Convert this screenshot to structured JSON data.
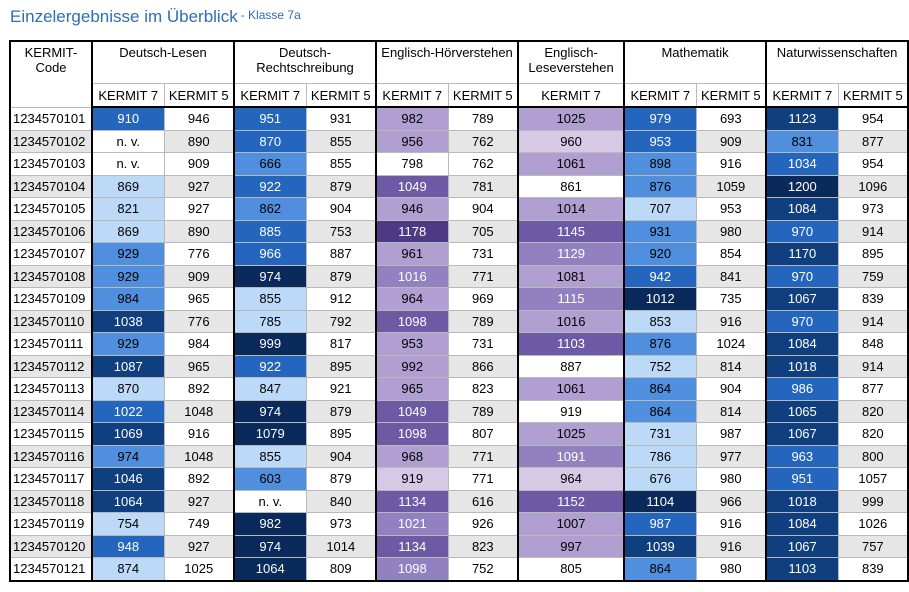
{
  "title": "Einzelergebnisse im Überblick",
  "subtitle": "- Klasse 7a",
  "code_header": "KERMIT-Code",
  "subject_groups": [
    {
      "name": "Deutsch-Lesen",
      "subcols": [
        "KERMIT 7",
        "KERMIT 5"
      ]
    },
    {
      "name": "Deutsch-Rechtschreibung",
      "subcols": [
        "KERMIT 7",
        "KERMIT 5"
      ]
    },
    {
      "name": "Englisch-Hörverstehen",
      "subcols": [
        "KERMIT 7",
        "KERMIT 5"
      ]
    },
    {
      "name": "Englisch-Leseverstehen",
      "subcols": [
        "KERMIT 7"
      ]
    },
    {
      "name": "Mathematik",
      "subcols": [
        "KERMIT 7",
        "KERMIT 5"
      ]
    },
    {
      "name": "Naturwissenschaften",
      "subcols": [
        "KERMIT 7",
        "KERMIT 5"
      ]
    }
  ],
  "palette": {
    "blue": [
      "#ffffff",
      "#bcd9f7",
      "#4f8fde",
      "#2466bd",
      "#103f80",
      "#0a2a5c"
    ],
    "purple": [
      "#ffffff",
      "#d5c9e5",
      "#b09fd0",
      "#9281c1",
      "#6d5aa5",
      "#4d3a84"
    ]
  },
  "rows": [
    {
      "code": "1234570101",
      "cells": [
        [
          "910",
          3
        ],
        [
          "946",
          0
        ],
        [
          "951",
          3
        ],
        [
          "931",
          0
        ],
        [
          "982",
          2
        ],
        [
          "789",
          0
        ],
        [
          "1025",
          2
        ],
        [
          "979",
          3
        ],
        [
          "693",
          0
        ],
        [
          "1123",
          4
        ],
        [
          "954",
          0
        ]
      ]
    },
    {
      "code": "1234570102",
      "cells": [
        [
          "n. v.",
          0
        ],
        [
          "890",
          0
        ],
        [
          "870",
          3
        ],
        [
          "855",
          0
        ],
        [
          "956",
          2
        ],
        [
          "762",
          0
        ],
        [
          "960",
          1
        ],
        [
          "953",
          3
        ],
        [
          "909",
          0
        ],
        [
          "831",
          2
        ],
        [
          "877",
          0
        ]
      ]
    },
    {
      "code": "1234570103",
      "cells": [
        [
          "n. v.",
          0
        ],
        [
          "909",
          0
        ],
        [
          "666",
          2
        ],
        [
          "855",
          0
        ],
        [
          "798",
          0
        ],
        [
          "762",
          0
        ],
        [
          "1061",
          2
        ],
        [
          "898",
          2
        ],
        [
          "916",
          0
        ],
        [
          "1034",
          3
        ],
        [
          "954",
          0
        ]
      ]
    },
    {
      "code": "1234570104",
      "cells": [
        [
          "869",
          1
        ],
        [
          "927",
          0
        ],
        [
          "922",
          3
        ],
        [
          "879",
          0
        ],
        [
          "1049",
          4
        ],
        [
          "781",
          0
        ],
        [
          "861",
          0
        ],
        [
          "876",
          2
        ],
        [
          "1059",
          0
        ],
        [
          "1200",
          5
        ],
        [
          "1096",
          0
        ]
      ]
    },
    {
      "code": "1234570105",
      "cells": [
        [
          "821",
          1
        ],
        [
          "927",
          0
        ],
        [
          "862",
          2
        ],
        [
          "904",
          0
        ],
        [
          "946",
          2
        ],
        [
          "904",
          0
        ],
        [
          "1014",
          2
        ],
        [
          "707",
          1
        ],
        [
          "953",
          0
        ],
        [
          "1084",
          4
        ],
        [
          "973",
          0
        ]
      ]
    },
    {
      "code": "1234570106",
      "cells": [
        [
          "869",
          1
        ],
        [
          "890",
          0
        ],
        [
          "885",
          3
        ],
        [
          "753",
          0
        ],
        [
          "1178",
          5
        ],
        [
          "705",
          0
        ],
        [
          "1145",
          4
        ],
        [
          "931",
          2
        ],
        [
          "980",
          0
        ],
        [
          "970",
          3
        ],
        [
          "914",
          0
        ]
      ]
    },
    {
      "code": "1234570107",
      "cells": [
        [
          "929",
          2
        ],
        [
          "776",
          0
        ],
        [
          "966",
          3
        ],
        [
          "887",
          0
        ],
        [
          "961",
          2
        ],
        [
          "731",
          0
        ],
        [
          "1129",
          3
        ],
        [
          "920",
          2
        ],
        [
          "854",
          0
        ],
        [
          "1170",
          4
        ],
        [
          "895",
          0
        ]
      ]
    },
    {
      "code": "1234570108",
      "cells": [
        [
          "929",
          2
        ],
        [
          "909",
          0
        ],
        [
          "974",
          5
        ],
        [
          "879",
          0
        ],
        [
          "1016",
          3
        ],
        [
          "771",
          0
        ],
        [
          "1081",
          2
        ],
        [
          "942",
          3
        ],
        [
          "841",
          0
        ],
        [
          "970",
          3
        ],
        [
          "759",
          0
        ]
      ]
    },
    {
      "code": "1234570109",
      "cells": [
        [
          "984",
          2
        ],
        [
          "965",
          0
        ],
        [
          "855",
          1
        ],
        [
          "912",
          0
        ],
        [
          "964",
          2
        ],
        [
          "969",
          0
        ],
        [
          "1115",
          3
        ],
        [
          "1012",
          5
        ],
        [
          "735",
          0
        ],
        [
          "1067",
          4
        ],
        [
          "839",
          0
        ]
      ]
    },
    {
      "code": "1234570110",
      "cells": [
        [
          "1038",
          4
        ],
        [
          "776",
          0
        ],
        [
          "785",
          1
        ],
        [
          "792",
          0
        ],
        [
          "1098",
          4
        ],
        [
          "789",
          0
        ],
        [
          "1016",
          2
        ],
        [
          "853",
          1
        ],
        [
          "916",
          0
        ],
        [
          "970",
          3
        ],
        [
          "914",
          0
        ]
      ]
    },
    {
      "code": "1234570111",
      "cells": [
        [
          "929",
          2
        ],
        [
          "984",
          0
        ],
        [
          "999",
          5
        ],
        [
          "817",
          0
        ],
        [
          "953",
          2
        ],
        [
          "731",
          0
        ],
        [
          "1103",
          4
        ],
        [
          "876",
          2
        ],
        [
          "1024",
          0
        ],
        [
          "1084",
          4
        ],
        [
          "848",
          0
        ]
      ]
    },
    {
      "code": "1234570112",
      "cells": [
        [
          "1087",
          4
        ],
        [
          "965",
          0
        ],
        [
          "922",
          3
        ],
        [
          "895",
          0
        ],
        [
          "992",
          2
        ],
        [
          "866",
          0
        ],
        [
          "887",
          0
        ],
        [
          "752",
          1
        ],
        [
          "814",
          0
        ],
        [
          "1018",
          4
        ],
        [
          "914",
          0
        ]
      ]
    },
    {
      "code": "1234570113",
      "cells": [
        [
          "870",
          1
        ],
        [
          "892",
          0
        ],
        [
          "847",
          1
        ],
        [
          "921",
          0
        ],
        [
          "965",
          2
        ],
        [
          "823",
          0
        ],
        [
          "1061",
          2
        ],
        [
          "864",
          2
        ],
        [
          "904",
          0
        ],
        [
          "986",
          3
        ],
        [
          "877",
          0
        ]
      ]
    },
    {
      "code": "1234570114",
      "cells": [
        [
          "1022",
          3
        ],
        [
          "1048",
          0
        ],
        [
          "974",
          5
        ],
        [
          "879",
          0
        ],
        [
          "1049",
          4
        ],
        [
          "789",
          0
        ],
        [
          "919",
          0
        ],
        [
          "864",
          2
        ],
        [
          "814",
          0
        ],
        [
          "1065",
          4
        ],
        [
          "820",
          0
        ]
      ]
    },
    {
      "code": "1234570115",
      "cells": [
        [
          "1069",
          4
        ],
        [
          "916",
          0
        ],
        [
          "1079",
          5
        ],
        [
          "895",
          0
        ],
        [
          "1098",
          4
        ],
        [
          "807",
          0
        ],
        [
          "1025",
          2
        ],
        [
          "731",
          1
        ],
        [
          "987",
          0
        ],
        [
          "1067",
          4
        ],
        [
          "820",
          0
        ]
      ]
    },
    {
      "code": "1234570116",
      "cells": [
        [
          "974",
          2
        ],
        [
          "1048",
          0
        ],
        [
          "855",
          1
        ],
        [
          "904",
          0
        ],
        [
          "968",
          2
        ],
        [
          "771",
          0
        ],
        [
          "1091",
          3
        ],
        [
          "786",
          1
        ],
        [
          "977",
          0
        ],
        [
          "963",
          3
        ],
        [
          "800",
          0
        ]
      ]
    },
    {
      "code": "1234570117",
      "cells": [
        [
          "1046",
          4
        ],
        [
          "892",
          0
        ],
        [
          "603",
          2
        ],
        [
          "879",
          0
        ],
        [
          "919",
          1
        ],
        [
          "771",
          0
        ],
        [
          "964",
          1
        ],
        [
          "676",
          1
        ],
        [
          "980",
          0
        ],
        [
          "951",
          3
        ],
        [
          "1057",
          0
        ]
      ]
    },
    {
      "code": "1234570118",
      "cells": [
        [
          "1064",
          4
        ],
        [
          "927",
          0
        ],
        [
          "n. v.",
          0
        ],
        [
          "840",
          0
        ],
        [
          "1134",
          4
        ],
        [
          "616",
          0
        ],
        [
          "1152",
          4
        ],
        [
          "1104",
          5
        ],
        [
          "966",
          0
        ],
        [
          "1018",
          4
        ],
        [
          "999",
          0
        ]
      ]
    },
    {
      "code": "1234570119",
      "cells": [
        [
          "754",
          1
        ],
        [
          "749",
          0
        ],
        [
          "982",
          5
        ],
        [
          "973",
          0
        ],
        [
          "1021",
          3
        ],
        [
          "926",
          0
        ],
        [
          "1007",
          2
        ],
        [
          "987",
          3
        ],
        [
          "916",
          0
        ],
        [
          "1084",
          4
        ],
        [
          "1026",
          0
        ]
      ]
    },
    {
      "code": "1234570120",
      "cells": [
        [
          "948",
          3
        ],
        [
          "927",
          0
        ],
        [
          "974",
          5
        ],
        [
          "1014",
          0
        ],
        [
          "1134",
          4
        ],
        [
          "823",
          0
        ],
        [
          "997",
          2
        ],
        [
          "1039",
          4
        ],
        [
          "916",
          0
        ],
        [
          "1067",
          4
        ],
        [
          "757",
          0
        ]
      ]
    },
    {
      "code": "1234570121",
      "cells": [
        [
          "874",
          1
        ],
        [
          "1025",
          0
        ],
        [
          "1064",
          5
        ],
        [
          "809",
          0
        ],
        [
          "1098",
          3
        ],
        [
          "752",
          0
        ],
        [
          "805",
          0
        ],
        [
          "864",
          2
        ],
        [
          "980",
          0
        ],
        [
          "1103",
          4
        ],
        [
          "839",
          0
        ]
      ]
    }
  ]
}
